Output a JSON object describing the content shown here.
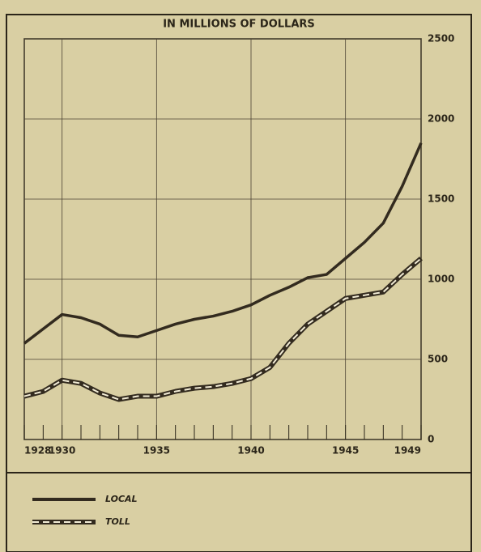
{
  "chart_data": {
    "type": "line",
    "title": "IN MILLIONS OF DOLLARS",
    "x": [
      1928,
      1929,
      1930,
      1931,
      1932,
      1933,
      1934,
      1935,
      1936,
      1937,
      1938,
      1939,
      1940,
      1941,
      1942,
      1943,
      1944,
      1945,
      1946,
      1947,
      1948,
      1949
    ],
    "series": [
      {
        "name": "LOCAL",
        "color": "#332b1f",
        "values": [
          600,
          690,
          780,
          760,
          720,
          650,
          640,
          680,
          720,
          750,
          770,
          800,
          840,
          900,
          950,
          1010,
          1030,
          1130,
          1230,
          1350,
          1580,
          1850
        ]
      },
      {
        "name": "TOLL",
        "color": "#332b1f",
        "values": [
          270,
          300,
          370,
          350,
          290,
          250,
          270,
          270,
          300,
          320,
          330,
          350,
          380,
          450,
          600,
          720,
          800,
          880,
          900,
          920,
          1030,
          1130
        ]
      }
    ],
    "xlim": [
      1928,
      1949
    ],
    "xticks": [
      1928,
      1930,
      1935,
      1940,
      1945,
      1949
    ],
    "ylim": [
      0,
      2500
    ],
    "yticks": [
      0,
      500,
      1000,
      1500,
      2000,
      2500
    ],
    "grid": true,
    "y_axis_side": "right"
  }
}
